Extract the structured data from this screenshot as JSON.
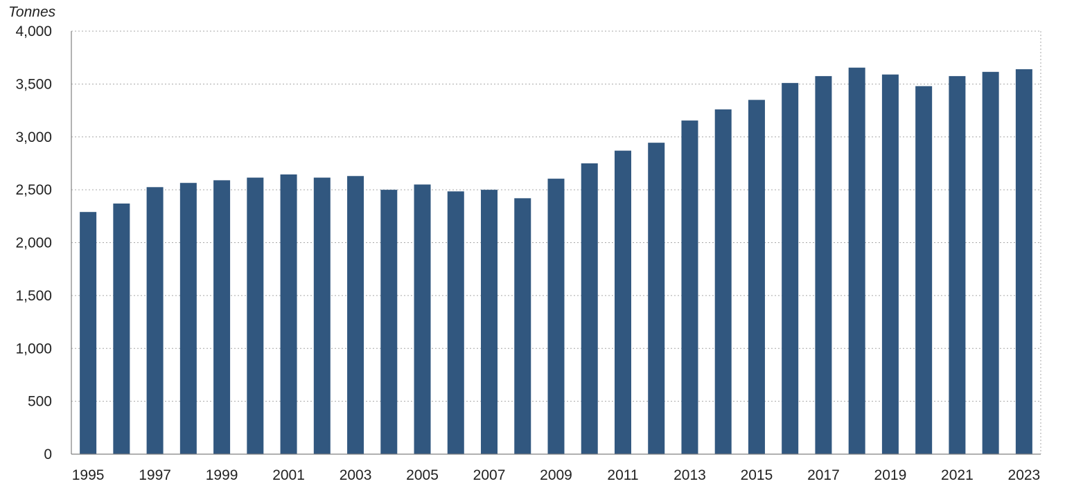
{
  "chart_data": {
    "type": "bar",
    "title": "",
    "unit_label": "Tonnes",
    "xlabel": "",
    "ylabel": "Tonnes",
    "ylim": [
      0,
      4000
    ],
    "y_ticks": [
      0,
      500,
      1000,
      1500,
      2000,
      2500,
      3000,
      3500,
      4000
    ],
    "y_tick_labels": [
      "0",
      "500",
      "1,000",
      "1,500",
      "2,000",
      "2,500",
      "3,000",
      "3,500",
      "4,000"
    ],
    "categories": [
      "1995",
      "1996",
      "1997",
      "1998",
      "1999",
      "2000",
      "2001",
      "2002",
      "2003",
      "2004",
      "2005",
      "2006",
      "2007",
      "2008",
      "2009",
      "2010",
      "2011",
      "2012",
      "2013",
      "2014",
      "2015",
      "2016",
      "2017",
      "2018",
      "2019",
      "2020",
      "2021",
      "2022",
      "2023"
    ],
    "x_tick_labels": [
      "1995",
      "",
      "1997",
      "",
      "1999",
      "",
      "2001",
      "",
      "2003",
      "",
      "2005",
      "",
      "2007",
      "",
      "2009",
      "",
      "2011",
      "",
      "2013",
      "",
      "2015",
      "",
      "2017",
      "",
      "2019",
      "",
      "2021",
      "",
      "2023"
    ],
    "values": [
      2290,
      2370,
      2525,
      2565,
      2590,
      2615,
      2645,
      2615,
      2630,
      2500,
      2550,
      2485,
      2500,
      2420,
      2605,
      2750,
      2870,
      2945,
      3155,
      3260,
      3350,
      3510,
      3575,
      3655,
      3590,
      3480,
      3575,
      3615,
      3640
    ],
    "bar_color": "#31577f",
    "grid": true,
    "legend": "none"
  }
}
